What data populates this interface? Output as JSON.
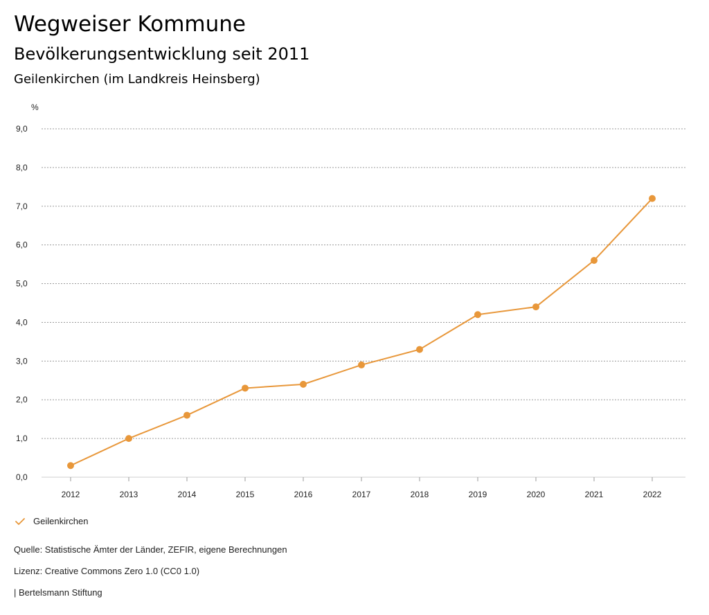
{
  "header": {
    "title": "Wegweiser Kommune",
    "subtitle": "Bevölkerungsentwicklung seit 2011",
    "region": "Geilenkirchen (im Landkreis Heinsberg)"
  },
  "chart_data": {
    "type": "line",
    "unit_label": "%",
    "x": [
      "2012",
      "2013",
      "2014",
      "2015",
      "2016",
      "2017",
      "2018",
      "2019",
      "2020",
      "2021",
      "2022"
    ],
    "series": [
      {
        "name": "Geilenkirchen",
        "values": [
          0.3,
          1.0,
          1.6,
          2.3,
          2.4,
          2.9,
          3.3,
          4.2,
          4.4,
          5.6,
          7.2
        ],
        "color": "#e8973a"
      }
    ],
    "yticks": [
      "0,0",
      "1,0",
      "2,0",
      "3,0",
      "4,0",
      "5,0",
      "6,0",
      "7,0",
      "8,0",
      "9,0"
    ],
    "ylim": [
      0,
      9
    ],
    "grid": true,
    "legend_position": "bottom-left"
  },
  "legend": {
    "label": "Geilenkirchen"
  },
  "footer": {
    "source": "Quelle: Statistische Ämter der Länder, ZEFIR, eigene Berechnungen",
    "license": "Lizenz: Creative Commons Zero 1.0 (CC0 1.0)",
    "publisher": "| Bertelsmann Stiftung"
  }
}
